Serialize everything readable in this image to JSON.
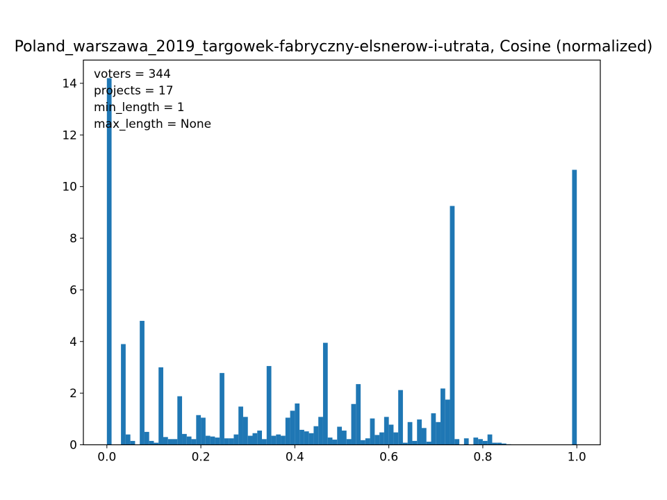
{
  "chart_data": {
    "type": "bar",
    "title": "Poland_warszawa_2019_targowek-fabryczny-elsnerow-i-utrata, Cosine (normalized)",
    "xlim": [
      -0.05,
      1.05
    ],
    "ylim": [
      0,
      14.9
    ],
    "xticks": [
      "0.0",
      "0.2",
      "0.4",
      "0.6",
      "0.8",
      "1.0"
    ],
    "yticks": [
      "0",
      "2",
      "4",
      "6",
      "8",
      "10",
      "12",
      "14"
    ],
    "annotations": [
      "voters = 344",
      "projects = 17",
      "min_length = 1",
      "max_length = None"
    ],
    "color": "#1f77b4",
    "bin_width": 0.01,
    "bins": [
      [
        0.0,
        14.2
      ],
      [
        0.03,
        3.9
      ],
      [
        0.04,
        0.4
      ],
      [
        0.05,
        0.15
      ],
      [
        0.07,
        4.8
      ],
      [
        0.08,
        0.5
      ],
      [
        0.09,
        0.15
      ],
      [
        0.1,
        0.08
      ],
      [
        0.11,
        3.0
      ],
      [
        0.12,
        0.3
      ],
      [
        0.13,
        0.22
      ],
      [
        0.14,
        0.22
      ],
      [
        0.15,
        1.88
      ],
      [
        0.16,
        0.42
      ],
      [
        0.17,
        0.32
      ],
      [
        0.18,
        0.22
      ],
      [
        0.19,
        1.15
      ],
      [
        0.2,
        1.05
      ],
      [
        0.21,
        0.35
      ],
      [
        0.22,
        0.32
      ],
      [
        0.23,
        0.28
      ],
      [
        0.24,
        2.78
      ],
      [
        0.25,
        0.25
      ],
      [
        0.26,
        0.25
      ],
      [
        0.27,
        0.4
      ],
      [
        0.28,
        1.48
      ],
      [
        0.29,
        1.08
      ],
      [
        0.3,
        0.35
      ],
      [
        0.31,
        0.45
      ],
      [
        0.32,
        0.55
      ],
      [
        0.33,
        0.22
      ],
      [
        0.34,
        3.05
      ],
      [
        0.35,
        0.35
      ],
      [
        0.36,
        0.4
      ],
      [
        0.37,
        0.35
      ],
      [
        0.38,
        1.05
      ],
      [
        0.39,
        1.32
      ],
      [
        0.4,
        1.6
      ],
      [
        0.41,
        0.58
      ],
      [
        0.42,
        0.52
      ],
      [
        0.43,
        0.45
      ],
      [
        0.44,
        0.72
      ],
      [
        0.45,
        1.08
      ],
      [
        0.46,
        3.95
      ],
      [
        0.47,
        0.28
      ],
      [
        0.48,
        0.2
      ],
      [
        0.49,
        0.7
      ],
      [
        0.5,
        0.55
      ],
      [
        0.51,
        0.22
      ],
      [
        0.52,
        1.58
      ],
      [
        0.53,
        2.35
      ],
      [
        0.54,
        0.18
      ],
      [
        0.55,
        0.25
      ],
      [
        0.56,
        1.02
      ],
      [
        0.57,
        0.38
      ],
      [
        0.58,
        0.48
      ],
      [
        0.59,
        1.08
      ],
      [
        0.6,
        0.78
      ],
      [
        0.61,
        0.48
      ],
      [
        0.62,
        2.12
      ],
      [
        0.63,
        0.08
      ],
      [
        0.64,
        0.88
      ],
      [
        0.65,
        0.15
      ],
      [
        0.66,
        0.98
      ],
      [
        0.67,
        0.65
      ],
      [
        0.68,
        0.12
      ],
      [
        0.69,
        1.22
      ],
      [
        0.7,
        0.88
      ],
      [
        0.71,
        2.18
      ],
      [
        0.72,
        1.75
      ],
      [
        0.73,
        9.25
      ],
      [
        0.74,
        0.22
      ],
      [
        0.76,
        0.25
      ],
      [
        0.78,
        0.28
      ],
      [
        0.79,
        0.22
      ],
      [
        0.8,
        0.15
      ],
      [
        0.81,
        0.4
      ],
      [
        0.82,
        0.08
      ],
      [
        0.83,
        0.08
      ],
      [
        0.84,
        0.05
      ],
      [
        0.85,
        0.02
      ],
      [
        0.99,
        10.65
      ]
    ]
  }
}
